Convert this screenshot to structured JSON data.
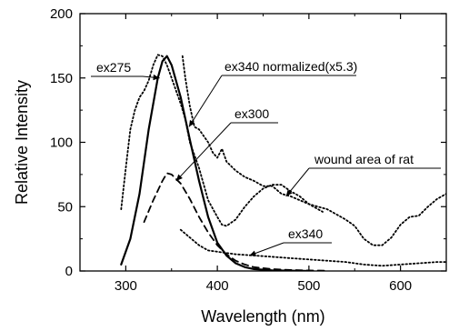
{
  "chart_data": {
    "type": "line",
    "title": "",
    "xlabel": "Wavelength (nm)",
    "ylabel": "Relative Intensity",
    "xlim": [
      250,
      650
    ],
    "ylim": [
      0,
      200
    ],
    "xticks": [
      300,
      400,
      500,
      600
    ],
    "yticks": [
      0,
      50,
      100,
      150,
      200
    ],
    "grid": false,
    "legend": "none",
    "series": [
      {
        "name": "ex275",
        "style": "solid",
        "points": [
          [
            295,
            5
          ],
          [
            305,
            25
          ],
          [
            315,
            60
          ],
          [
            325,
            110
          ],
          [
            335,
            150
          ],
          [
            340,
            163
          ],
          [
            345,
            167
          ],
          [
            350,
            160
          ],
          [
            360,
            135
          ],
          [
            370,
            102
          ],
          [
            380,
            70
          ],
          [
            390,
            42
          ],
          [
            400,
            22
          ],
          [
            410,
            12
          ],
          [
            420,
            6
          ],
          [
            430,
            3
          ],
          [
            440,
            1.5
          ],
          [
            460,
            0.5
          ],
          [
            500,
            0
          ]
        ]
      },
      {
        "name": "ex300",
        "style": "dashed",
        "points": [
          [
            320,
            38
          ],
          [
            330,
            55
          ],
          [
            340,
            70
          ],
          [
            345,
            76
          ],
          [
            350,
            75
          ],
          [
            360,
            68
          ],
          [
            370,
            56
          ],
          [
            380,
            42
          ],
          [
            390,
            30
          ],
          [
            400,
            20
          ],
          [
            410,
            13
          ],
          [
            420,
            8
          ],
          [
            430,
            5
          ],
          [
            440,
            3
          ],
          [
            460,
            1.5
          ],
          [
            480,
            0.8
          ],
          [
            500,
            0.4
          ],
          [
            520,
            0.2
          ]
        ]
      },
      {
        "name": "ex340",
        "style": "dotted",
        "points": [
          [
            360,
            32
          ],
          [
            370,
            26
          ],
          [
            380,
            20
          ],
          [
            390,
            16
          ],
          [
            400,
            15
          ],
          [
            420,
            13
          ],
          [
            440,
            12
          ],
          [
            460,
            11
          ],
          [
            480,
            10
          ],
          [
            500,
            9
          ],
          [
            520,
            8
          ],
          [
            540,
            7
          ],
          [
            560,
            5
          ],
          [
            580,
            4
          ],
          [
            600,
            5
          ],
          [
            620,
            6
          ],
          [
            640,
            7
          ],
          [
            650,
            7
          ]
        ]
      },
      {
        "name": "wound area of rat",
        "style": "dotted",
        "points": [
          [
            295,
            48
          ],
          [
            300,
            80
          ],
          [
            305,
            110
          ],
          [
            310,
            125
          ],
          [
            315,
            135
          ],
          [
            320,
            140
          ],
          [
            325,
            148
          ],
          [
            330,
            160
          ],
          [
            335,
            168
          ],
          [
            340,
            167
          ],
          [
            345,
            160
          ],
          [
            350,
            150
          ],
          [
            355,
            140
          ],
          [
            360,
            130
          ],
          [
            365,
            118
          ],
          [
            370,
            100
          ],
          [
            380,
            80
          ],
          [
            390,
            55
          ],
          [
            400,
            42
          ],
          [
            405,
            36
          ],
          [
            410,
            35
          ],
          [
            420,
            40
          ],
          [
            430,
            50
          ],
          [
            440,
            58
          ],
          [
            450,
            64
          ],
          [
            460,
            67
          ],
          [
            470,
            67
          ],
          [
            480,
            62
          ],
          [
            490,
            58
          ],
          [
            500,
            52
          ],
          [
            510,
            48
          ],
          [
            515,
            46
          ]
        ]
      },
      {
        "name": "ex340 normalized(x5.3)",
        "style": "dotted",
        "points": [
          [
            362,
            167
          ],
          [
            365,
            150
          ],
          [
            370,
            128
          ],
          [
            375,
            112
          ],
          [
            380,
            110
          ],
          [
            385,
            105
          ],
          [
            390,
            100
          ],
          [
            395,
            92
          ],
          [
            400,
            88
          ],
          [
            405,
            95
          ],
          [
            410,
            85
          ],
          [
            420,
            78
          ],
          [
            430,
            73
          ],
          [
            440,
            70
          ],
          [
            450,
            66
          ],
          [
            460,
            66
          ],
          [
            470,
            60
          ],
          [
            480,
            58
          ],
          [
            490,
            55
          ],
          [
            500,
            52
          ],
          [
            510,
            50
          ],
          [
            520,
            48
          ],
          [
            530,
            44
          ],
          [
            540,
            40
          ],
          [
            550,
            35
          ],
          [
            560,
            25
          ],
          [
            570,
            20
          ],
          [
            580,
            20
          ],
          [
            590,
            26
          ],
          [
            600,
            36
          ],
          [
            610,
            42
          ],
          [
            620,
            43
          ],
          [
            630,
            50
          ],
          [
            640,
            56
          ],
          [
            650,
            60
          ]
        ]
      }
    ],
    "annotations": [
      {
        "text": "ex275",
        "target": [
          337,
          150
        ]
      },
      {
        "text": "ex340 normalized(x5.3)",
        "target": [
          369,
          112
        ]
      },
      {
        "text": "ex300",
        "target": [
          355,
          70
        ]
      },
      {
        "text": "wound area of rat",
        "target": [
          475,
          58
        ]
      },
      {
        "text": "ex340",
        "target": [
          435,
          12
        ]
      }
    ]
  }
}
